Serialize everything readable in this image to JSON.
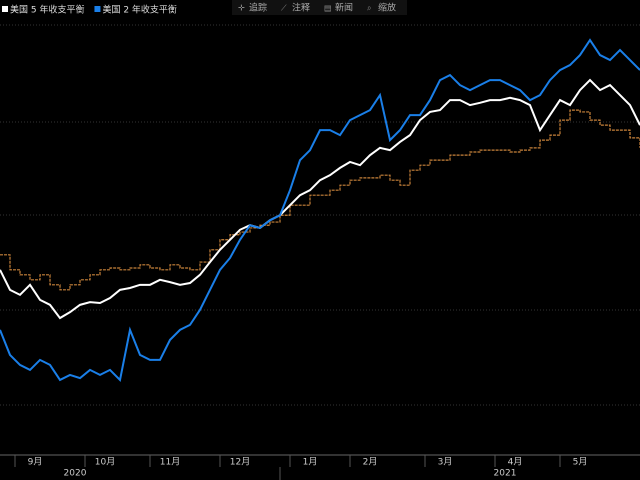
{
  "chart_data": {
    "type": "line",
    "toolbar": [
      "追踪",
      "注释",
      "新闻",
      "缩放"
    ],
    "xlim": [
      0,
      64
    ],
    "ylim": [
      0,
      100
    ],
    "xticks": [
      {
        "value": 3.5,
        "label": "9月"
      },
      {
        "value": 10.5,
        "label": "10月"
      },
      {
        "value": 17,
        "label": "11月"
      },
      {
        "value": 24,
        "label": "12月"
      },
      {
        "value": 31,
        "label": "1月"
      },
      {
        "value": 37,
        "label": "2月"
      },
      {
        "value": 44.5,
        "label": "3月"
      },
      {
        "value": 51.5,
        "label": "4月"
      },
      {
        "value": 58,
        "label": "5月"
      }
    ],
    "year_ticks": [
      {
        "value": 7.5,
        "label": "2020"
      },
      {
        "value": 50.5,
        "label": "2021"
      }
    ],
    "series": [
      {
        "name": "美国 5 年收支平衡",
        "color": "#ffffff",
        "values": [
          40.7,
          36.3,
          35.2,
          37.4,
          34.1,
          33.0,
          30.1,
          31.4,
          33.0,
          33.6,
          33.4,
          34.5,
          36.3,
          36.7,
          37.4,
          37.4,
          38.5,
          38.0,
          37.4,
          37.8,
          39.6,
          42.4,
          45.1,
          47.3,
          49.5,
          50.5,
          49.9,
          51.6,
          52.7,
          54.9,
          57.1,
          58.2,
          60.4,
          61.5,
          63.1,
          64.4,
          63.7,
          65.9,
          67.5,
          67.0,
          68.8,
          70.3,
          73.6,
          75.4,
          75.8,
          78.0,
          78.0,
          76.9,
          77.4,
          78.0,
          78.0,
          78.5,
          78.0,
          76.9,
          71.4,
          74.7,
          78.0,
          76.9,
          80.2,
          82.4,
          80.2,
          81.3,
          79.1,
          76.9,
          72.5
        ]
      },
      {
        "name": "美国 2 年收支平衡",
        "color": "#1a7fe8",
        "values": [
          27.5,
          22.0,
          19.8,
          18.7,
          20.9,
          19.8,
          16.5,
          17.6,
          16.9,
          18.7,
          17.6,
          18.7,
          16.5,
          27.5,
          22.0,
          20.9,
          20.9,
          25.3,
          27.5,
          28.6,
          31.9,
          36.3,
          40.7,
          43.3,
          47.3,
          50.5,
          49.9,
          51.6,
          52.7,
          58.2,
          64.8,
          67.0,
          71.4,
          71.4,
          70.3,
          73.6,
          74.7,
          75.8,
          79.1,
          69.2,
          71.4,
          74.7,
          74.7,
          78.0,
          82.4,
          83.5,
          81.3,
          80.2,
          81.3,
          82.4,
          82.4,
          81.3,
          80.2,
          78.0,
          79.1,
          82.4,
          84.6,
          85.7,
          87.9,
          91.2,
          87.9,
          86.8,
          89.0,
          86.8,
          84.6
        ]
      },
      {
        "color": "#c8823a",
        "values": [
          44.0,
          40.7,
          39.6,
          38.5,
          39.6,
          37.4,
          36.3,
          37.4,
          38.5,
          39.6,
          40.7,
          41.1,
          40.7,
          41.1,
          41.8,
          41.1,
          40.7,
          41.8,
          41.1,
          40.7,
          42.4,
          45.1,
          47.3,
          48.4,
          49.0,
          49.9,
          50.5,
          51.2,
          52.7,
          54.9,
          54.9,
          57.1,
          57.1,
          58.2,
          59.3,
          60.4,
          60.9,
          60.9,
          61.5,
          60.4,
          59.3,
          62.6,
          63.7,
          64.8,
          64.8,
          65.9,
          65.9,
          66.6,
          67.0,
          67.0,
          67.0,
          66.6,
          67.0,
          67.5,
          69.2,
          70.3,
          73.6,
          75.8,
          75.4,
          73.6,
          72.5,
          71.4,
          71.4,
          69.7,
          67.5
        ]
      }
    ]
  }
}
